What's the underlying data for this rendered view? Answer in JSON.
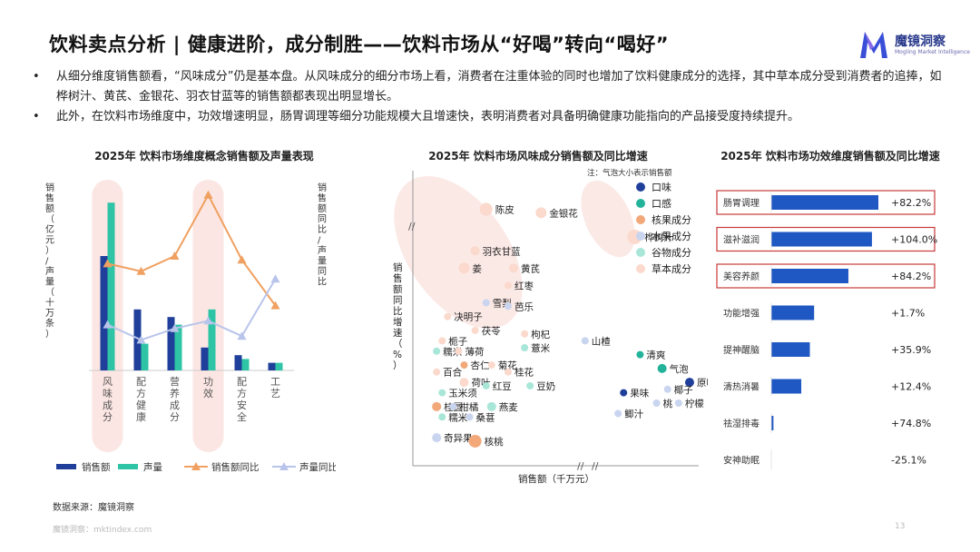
{
  "title": "饮料卖点分析 | 健康进阶，成分制胜——饮料市场从“好喝”转向“喝好”",
  "logo": {
    "name": "魔镜洞察",
    "sub": "Mogling Market Intelligence"
  },
  "bullets": [
    "从细分维度销售额看，“风味成分”仍是基本盘。从风味成分的细分市场上看，消费者在注重体验的同时也增加了饮料健康成分的选择，其中草本成分受到消费者的追捧，如桦树汁、黄芪、金银花、羽衣甘蓝等的销售额都表现出明显增长。",
    "此外，在饮料市场维度中，功效增速明显，肠胃调理等细分功能规模大且增速快，表明消费者对具备明确健康功能指向的产品接受度持续提升。"
  ],
  "source": "数据来源：魔镜洞察",
  "footer": "魔镜洞察：mktindex.com",
  "page_number": "13",
  "colors": {
    "sales": "#1f3f9a",
    "volume": "#2ec4a5",
    "sales_yoy": "#f0a060",
    "volume_yoy": "#b8c4ea",
    "bar": "#1f57c3",
    "bubble_bg": "#fbe6e3"
  },
  "chart_data": [
    {
      "type": "bar",
      "title": "2025年 饮料市场维度概念销售额及声量表现",
      "ylabel_left": "销售额（亿元）/声量（十万条）",
      "ylabel_right": "销售额同比/声量同比",
      "categories": [
        "风味成分",
        "配方健康",
        "营养成分",
        "功效",
        "配方安全",
        "工艺"
      ],
      "series": [
        {
          "name": "销售额",
          "kind": "bar",
          "values": [
            30,
            16,
            14,
            6,
            4,
            2
          ]
        },
        {
          "name": "声量",
          "kind": "bar",
          "values": [
            44,
            7,
            12,
            16,
            3,
            2
          ]
        },
        {
          "name": "销售额同比",
          "kind": "line",
          "values": [
            28,
            26,
            30,
            46,
            29,
            17
          ]
        },
        {
          "name": "声量同比",
          "kind": "line",
          "values": [
            12,
            8,
            11,
            13,
            9,
            24
          ]
        }
      ],
      "ylim": [
        0,
        50
      ],
      "highlighted": [
        "风味成分",
        "功效"
      ]
    },
    {
      "type": "scatter",
      "title": "2025年 饮料市场风味成分销售额及同比增速",
      "note": "注：气泡大小表示销售额",
      "xlabel": "销售额（千万元）",
      "ylabel": "销售额同比增速（%）",
      "legend": [
        {
          "name": "口味",
          "color": "#1f3f9a"
        },
        {
          "name": "口感",
          "color": "#22b39a"
        },
        {
          "name": "核果成分",
          "color": "#f2a878"
        },
        {
          "name": "水果成分",
          "color": "#c9d4ef"
        },
        {
          "name": "谷物成分",
          "color": "#a8e6d8"
        },
        {
          "name": "草本成分",
          "color": "#fbd9cc"
        }
      ],
      "points": [
        {
          "label": "陈皮",
          "group": "草本成分",
          "x": 1.2,
          "y": 92,
          "size": 14
        },
        {
          "label": "金银花",
          "group": "草本成分",
          "x": 2.2,
          "y": 91,
          "size": 12
        },
        {
          "label": "羽衣甘蓝",
          "group": "草本成分",
          "x": 1.0,
          "y": 80,
          "size": 10
        },
        {
          "label": "黄芪",
          "group": "草本成分",
          "x": 1.7,
          "y": 75,
          "size": 10
        },
        {
          "label": "姜",
          "group": "草本成分",
          "x": 0.8,
          "y": 75,
          "size": 12
        },
        {
          "label": "红枣",
          "group": "草本成分",
          "x": 1.6,
          "y": 70,
          "size": 8
        },
        {
          "label": "雪梨",
          "group": "水果成分",
          "x": 1.2,
          "y": 65,
          "size": 8
        },
        {
          "label": "芭乐",
          "group": "水果成分",
          "x": 1.6,
          "y": 64,
          "size": 8
        },
        {
          "label": "决明子",
          "group": "草本成分",
          "x": 0.5,
          "y": 61,
          "size": 8
        },
        {
          "label": "茯苓",
          "group": "草本成分",
          "x": 1.0,
          "y": 57,
          "size": 8
        },
        {
          "label": "枸杞",
          "group": "草本成分",
          "x": 1.9,
          "y": 56,
          "size": 8
        },
        {
          "label": "山楂",
          "group": "水果成分",
          "x": 3.0,
          "y": 54,
          "size": 8
        },
        {
          "label": "栀子",
          "group": "草本成分",
          "x": 0.4,
          "y": 54,
          "size": 8
        },
        {
          "label": "薏米",
          "group": "谷物成分",
          "x": 1.9,
          "y": 52,
          "size": 8
        },
        {
          "label": "糯米",
          "group": "谷物成分",
          "x": 0.3,
          "y": 51,
          "size": 8
        },
        {
          "label": "薄荷",
          "group": "草本成分",
          "x": 0.7,
          "y": 51,
          "size": 8
        },
        {
          "label": "杏仁",
          "group": "核果成分",
          "x": 0.8,
          "y": 47,
          "size": 8
        },
        {
          "label": "菊花",
          "group": "草本成分",
          "x": 1.3,
          "y": 47,
          "size": 8
        },
        {
          "label": "百合",
          "group": "草本成分",
          "x": 0.3,
          "y": 45,
          "size": 8
        },
        {
          "label": "桂花",
          "group": "草本成分",
          "x": 1.6,
          "y": 45,
          "size": 8
        },
        {
          "label": "荷叶",
          "group": "草本成分",
          "x": 0.8,
          "y": 42,
          "size": 10
        },
        {
          "label": "红豆",
          "group": "谷物成分",
          "x": 1.2,
          "y": 41,
          "size": 8
        },
        {
          "label": "豆奶",
          "group": "谷物成分",
          "x": 2.0,
          "y": 41,
          "size": 8
        },
        {
          "label": "玉米须",
          "group": "谷物成分",
          "x": 0.4,
          "y": 39,
          "size": 8
        },
        {
          "label": "桂圆",
          "group": "核果成分",
          "x": 0.3,
          "y": 35,
          "size": 10
        },
        {
          "label": "柑橘",
          "group": "水果成分",
          "x": 0.6,
          "y": 35,
          "size": 8
        },
        {
          "label": "燕麦",
          "group": "谷物成分",
          "x": 1.3,
          "y": 35,
          "size": 10
        },
        {
          "label": "糯米",
          "group": "谷物成分",
          "x": 0.4,
          "y": 32,
          "size": 8
        },
        {
          "label": "桑葚",
          "group": "水果成分",
          "x": 0.9,
          "y": 32,
          "size": 8
        },
        {
          "label": "奇异果",
          "group": "水果成分",
          "x": 0.3,
          "y": 26,
          "size": 10
        },
        {
          "label": "核桃",
          "group": "核果成分",
          "x": 1.0,
          "y": 25,
          "size": 14
        },
        {
          "label": "桦树汁",
          "group": "草本成分",
          "x": 3.9,
          "y": 84,
          "size": 16
        },
        {
          "label": "清爽",
          "group": "口感",
          "x": 4.0,
          "y": 50,
          "size": 8
        },
        {
          "label": "气泡",
          "group": "口感",
          "x": 4.4,
          "y": 46,
          "size": 10
        },
        {
          "label": "原味",
          "group": "口味",
          "x": 4.9,
          "y": 42,
          "size": 10
        },
        {
          "label": "果味",
          "group": "口味",
          "x": 3.7,
          "y": 39,
          "size": 8
        },
        {
          "label": "椰子",
          "group": "水果成分",
          "x": 4.5,
          "y": 40,
          "size": 8
        },
        {
          "label": "桃",
          "group": "水果成分",
          "x": 4.3,
          "y": 36,
          "size": 8
        },
        {
          "label": "柠檬",
          "group": "水果成分",
          "x": 4.7,
          "y": 36,
          "size": 8
        },
        {
          "label": "鲫汁",
          "group": "水果成分",
          "x": 3.6,
          "y": 33,
          "size": 8
        }
      ]
    },
    {
      "type": "bar",
      "orientation": "horizontal",
      "title": "2025年 饮料市场功效维度销售额及同比增速",
      "categories": [
        "肠胃调理",
        "滋补滋润",
        "美容养颜",
        "功能增强",
        "提神醒脑",
        "清热消暑",
        "祛湿排毒",
        "安神助眠"
      ],
      "values": [
        100,
        94,
        72,
        40,
        36,
        28,
        2,
        0
      ],
      "growth_labels": [
        "+82.2%",
        "+104.0%",
        "+84.2%",
        "+1.7%",
        "+35.9%",
        "+12.4%",
        "+74.8%",
        "-25.1%"
      ],
      "highlighted": [
        "肠胃调理",
        "滋补滋润",
        "美容养颜"
      ]
    }
  ]
}
